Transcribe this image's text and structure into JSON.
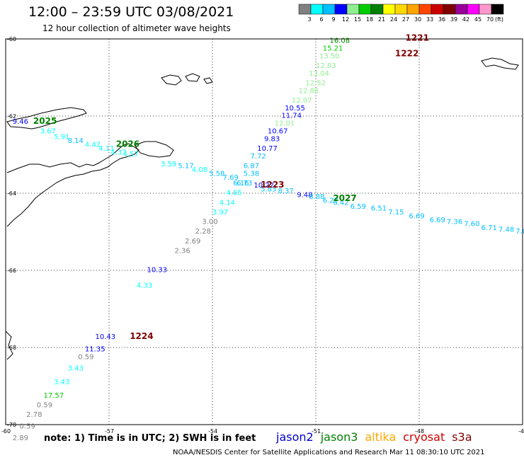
{
  "header": {
    "title": "12:00 – 23:59 UTC 03/08/2021",
    "subtitle": "12 hour collection of altimeter wave heights"
  },
  "legend": {
    "unit": "(ft)",
    "swatches": [
      {
        "color": "#808080",
        "label": "3"
      },
      {
        "color": "#00ffff",
        "label": "6"
      },
      {
        "color": "#00bfff",
        "label": "9"
      },
      {
        "color": "#0000ff",
        "label": "12"
      },
      {
        "color": "#90ee90",
        "label": "15"
      },
      {
        "color": "#00cc00",
        "label": "18"
      },
      {
        "color": "#008000",
        "label": "21"
      },
      {
        "color": "#ffff00",
        "label": "24"
      },
      {
        "color": "#ffd700",
        "label": "27"
      },
      {
        "color": "#ffa500",
        "label": "30"
      },
      {
        "color": "#ff4500",
        "label": "33"
      },
      {
        "color": "#cc0000",
        "label": "36"
      },
      {
        "color": "#800000",
        "label": "39"
      },
      {
        "color": "#990099",
        "label": "42"
      },
      {
        "color": "#ff00ff",
        "label": "45"
      },
      {
        "color": "#ff99cc",
        "label": "70"
      },
      {
        "color": "#000000",
        "label": ""
      }
    ]
  },
  "axes": {
    "lat_labels": [
      {
        "label": "-60",
        "lat": -60
      },
      {
        "label": "-62",
        "lat": -62
      },
      {
        "label": "-64",
        "lat": -64
      },
      {
        "label": "-66",
        "lat": -66
      },
      {
        "label": "-68",
        "lat": -68
      },
      {
        "label": "-70",
        "lat": -70
      }
    ],
    "lon_labels": [
      {
        "label": "-60",
        "lon": -60
      },
      {
        "label": "-57",
        "lon": -57
      },
      {
        "label": "-54",
        "lon": -54
      },
      {
        "label": "-51",
        "lon": -51
      },
      {
        "label": "-48",
        "lon": -48
      },
      {
        "label": "-45",
        "lon": -45
      }
    ]
  },
  "chart_data": {
    "type": "scatter",
    "xlim": [
      -60,
      -45
    ],
    "ylim": [
      -70,
      -60
    ],
    "grid": true,
    "pass_labels": [
      {
        "text": "1221",
        "lon": -48.4,
        "lat": -60.05,
        "color": "#800000"
      },
      {
        "text": "1222",
        "lon": -48.7,
        "lat": -60.45,
        "color": "#800000"
      },
      {
        "text": "2025",
        "lon": -59.2,
        "lat": -62.2,
        "color": "#008000"
      },
      {
        "text": "2026",
        "lon": -56.8,
        "lat": -62.8,
        "color": "#008000"
      },
      {
        "text": "1223",
        "lon": -52.6,
        "lat": -63.85,
        "color": "#800000"
      },
      {
        "text": "2027",
        "lon": -50.5,
        "lat": -64.2,
        "color": "#008000"
      },
      {
        "text": "1224",
        "lon": -56.4,
        "lat": -67.78,
        "color": "#800000"
      }
    ],
    "points": [
      {
        "text": "16.08",
        "lon": -50.6,
        "lat": -60.1,
        "color": "#008000"
      },
      {
        "text": "15.21",
        "lon": -50.8,
        "lat": -60.3,
        "color": "#00cc00"
      },
      {
        "text": "13.50",
        "lon": -50.9,
        "lat": -60.5,
        "color": "#90ee90"
      },
      {
        "text": "12.83",
        "lon": -51.0,
        "lat": -60.75,
        "color": "#90ee90"
      },
      {
        "text": "13.04",
        "lon": -51.2,
        "lat": -60.95,
        "color": "#90ee90"
      },
      {
        "text": "12.52",
        "lon": -51.3,
        "lat": -61.2,
        "color": "#90ee90"
      },
      {
        "text": "12.88",
        "lon": -51.5,
        "lat": -61.4,
        "color": "#90ee90"
      },
      {
        "text": "12.07",
        "lon": -51.7,
        "lat": -61.65,
        "color": "#90ee90"
      },
      {
        "text": "10.55",
        "lon": -51.9,
        "lat": -61.85,
        "color": "#0000ff"
      },
      {
        "text": "11.74",
        "lon": -52.0,
        "lat": -62.05,
        "color": "#0000ff"
      },
      {
        "text": "12.01",
        "lon": -52.2,
        "lat": -62.25,
        "color": "#90ee90"
      },
      {
        "text": "10.67",
        "lon": -52.4,
        "lat": -62.45,
        "color": "#0000ff"
      },
      {
        "text": "9.83",
        "lon": -52.5,
        "lat": -62.65,
        "color": "#0000ff"
      },
      {
        "text": "10.77",
        "lon": -52.7,
        "lat": -62.9,
        "color": "#0000ff"
      },
      {
        "text": "7.72",
        "lon": -52.9,
        "lat": -63.1,
        "color": "#00bfff"
      },
      {
        "text": "6.87",
        "lon": -53.1,
        "lat": -63.35,
        "color": "#00bfff"
      },
      {
        "text": "5.38",
        "lon": -53.1,
        "lat": -63.55,
        "color": "#00bfff"
      },
      {
        "text": "6.73",
        "lon": -53.3,
        "lat": -63.8,
        "color": "#00bfff"
      },
      {
        "text": "10.22",
        "lon": -52.8,
        "lat": -63.85,
        "color": "#0000ff"
      },
      {
        "text": "9.46",
        "lon": -59.8,
        "lat": -62.2,
        "color": "#0000ff"
      },
      {
        "text": "3.67",
        "lon": -59.0,
        "lat": -62.45,
        "color": "#00ffff"
      },
      {
        "text": "5.91",
        "lon": -58.6,
        "lat": -62.6,
        "color": "#00ffff"
      },
      {
        "text": "8.14",
        "lon": -58.2,
        "lat": -62.7,
        "color": "#00bfff"
      },
      {
        "text": "4.42",
        "lon": -57.7,
        "lat": -62.8,
        "color": "#00ffff"
      },
      {
        "text": "4.11",
        "lon": -57.3,
        "lat": -62.9,
        "color": "#00ffff"
      },
      {
        "text": "4.37",
        "lon": -56.95,
        "lat": -63.0,
        "color": "#00ffff"
      },
      {
        "text": "4.57",
        "lon": -56.6,
        "lat": -63.05,
        "color": "#00ffff"
      },
      {
        "text": "3.59",
        "lon": -55.5,
        "lat": -63.3,
        "color": "#00ffff"
      },
      {
        "text": "5.17",
        "lon": -55.0,
        "lat": -63.35,
        "color": "#00bfff"
      },
      {
        "text": "4.08",
        "lon": -54.6,
        "lat": -63.45,
        "color": "#00ffff"
      },
      {
        "text": "5.58",
        "lon": -54.1,
        "lat": -63.55,
        "color": "#00bfff"
      },
      {
        "text": "7.69",
        "lon": -53.7,
        "lat": -63.65,
        "color": "#00bfff"
      },
      {
        "text": "6.16",
        "lon": -53.4,
        "lat": -63.8,
        "color": "#00bfff"
      },
      {
        "text": "5.83",
        "lon": -52.6,
        "lat": -63.95,
        "color": "#00bfff"
      },
      {
        "text": "8.37",
        "lon": -52.1,
        "lat": -64.0,
        "color": "#00bfff"
      },
      {
        "text": "9.48",
        "lon": -51.55,
        "lat": -64.1,
        "color": "#0000ff"
      },
      {
        "text": "8.88",
        "lon": -51.2,
        "lat": -64.15,
        "color": "#00bfff"
      },
      {
        "text": "6.27",
        "lon": -50.8,
        "lat": -64.25,
        "color": "#00bfff"
      },
      {
        "text": "6.42",
        "lon": -50.5,
        "lat": -64.3,
        "color": "#00bfff"
      },
      {
        "text": "6.59",
        "lon": -50.0,
        "lat": -64.4,
        "color": "#00bfff"
      },
      {
        "text": "6.51",
        "lon": -49.4,
        "lat": -64.45,
        "color": "#00bfff"
      },
      {
        "text": "7.15",
        "lon": -48.9,
        "lat": -64.55,
        "color": "#00bfff"
      },
      {
        "text": "6.69",
        "lon": -48.3,
        "lat": -64.65,
        "color": "#00bfff"
      },
      {
        "text": "6.69",
        "lon": -47.7,
        "lat": -64.75,
        "color": "#00bfff"
      },
      {
        "text": "7.36",
        "lon": -47.2,
        "lat": -64.8,
        "color": "#00bfff"
      },
      {
        "text": "7.60",
        "lon": -46.7,
        "lat": -64.85,
        "color": "#00bfff"
      },
      {
        "text": "6.71",
        "lon": -46.2,
        "lat": -64.95,
        "color": "#00bfff"
      },
      {
        "text": "7.48",
        "lon": -45.7,
        "lat": -65.0,
        "color": "#00bfff"
      },
      {
        "text": "7.06",
        "lon": -45.2,
        "lat": -65.05,
        "color": "#00bfff"
      },
      {
        "text": "7.3",
        "lon": -44.7,
        "lat": -65.1,
        "color": "#00bfff"
      },
      {
        "text": "4.65",
        "lon": -53.6,
        "lat": -64.05,
        "color": "#00ffff"
      },
      {
        "text": "4.14",
        "lon": -53.8,
        "lat": -64.3,
        "color": "#00ffff"
      },
      {
        "text": "3.97",
        "lon": -54.0,
        "lat": -64.55,
        "color": "#00ffff"
      },
      {
        "text": "3.00",
        "lon": -54.3,
        "lat": -64.8,
        "color": "#808080"
      },
      {
        "text": "2.28",
        "lon": -54.5,
        "lat": -65.05,
        "color": "#808080"
      },
      {
        "text": "2.69",
        "lon": -54.8,
        "lat": -65.3,
        "color": "#808080"
      },
      {
        "text": "2.36",
        "lon": -55.1,
        "lat": -65.55,
        "color": "#808080"
      },
      {
        "text": "10.33",
        "lon": -55.9,
        "lat": -66.05,
        "color": "#0000ff"
      },
      {
        "text": "4.33",
        "lon": -56.2,
        "lat": -66.45,
        "color": "#00ffff"
      },
      {
        "text": "10.43",
        "lon": -57.4,
        "lat": -67.78,
        "color": "#0000ff"
      },
      {
        "text": "11.35",
        "lon": -57.7,
        "lat": -68.1,
        "color": "#0000ff"
      },
      {
        "text": "0.59",
        "lon": -57.9,
        "lat": -68.3,
        "color": "#808080"
      },
      {
        "text": "3.43",
        "lon": -58.2,
        "lat": -68.6,
        "color": "#00ffff"
      },
      {
        "text": "3.43",
        "lon": -58.6,
        "lat": -68.95,
        "color": "#00ffff"
      },
      {
        "text": "17.57",
        "lon": -58.9,
        "lat": -69.3,
        "color": "#00cc00"
      },
      {
        "text": "0.59",
        "lon": -59.1,
        "lat": -69.55,
        "color": "#808080"
      },
      {
        "text": "2.78",
        "lon": -59.4,
        "lat": -69.8,
        "color": "#808080"
      },
      {
        "text": "0.59",
        "lon": -59.6,
        "lat": -70.1,
        "color": "#808080"
      },
      {
        "text": "2.89",
        "lon": -59.8,
        "lat": -70.4,
        "color": "#808080"
      }
    ]
  },
  "footer": {
    "note": "note:  1) Time is in UTC;  2) SWH is in feet",
    "satellites": [
      {
        "name": "jason2",
        "color": "#0000cc"
      },
      {
        "name": "jason3",
        "color": "#008000"
      },
      {
        "name": "altika",
        "color": "#ffa500"
      },
      {
        "name": "cryosat",
        "color": "#cc0000"
      },
      {
        "name": "s3a",
        "color": "#800000"
      }
    ],
    "credit": "NOAA/NESDIS Center for Satellite Applications and Research    Mar 11 08:30:10 UTC 2021"
  }
}
